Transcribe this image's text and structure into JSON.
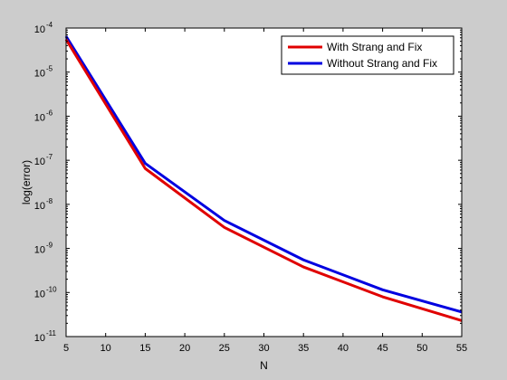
{
  "chart_data": {
    "type": "line",
    "title": "",
    "xlabel": "N",
    "ylabel": "log(error)",
    "xlim": [
      5,
      55
    ],
    "ylim": [
      1e-11,
      0.0001
    ],
    "yscale": "log",
    "grid": false,
    "legend_position": "top-right",
    "x_ticks": [
      5,
      10,
      15,
      20,
      25,
      30,
      35,
      40,
      45,
      50,
      55
    ],
    "y_ticks": [
      {
        "base": "10",
        "exp": "-11",
        "value": 1e-11
      },
      {
        "base": "10",
        "exp": "-10",
        "value": 1e-10
      },
      {
        "base": "10",
        "exp": "-9",
        "value": 1e-09
      },
      {
        "base": "10",
        "exp": "-8",
        "value": 1e-08
      },
      {
        "base": "10",
        "exp": "-7",
        "value": 1e-07
      },
      {
        "base": "10",
        "exp": "-6",
        "value": 1e-06
      },
      {
        "base": "10",
        "exp": "-5",
        "value": 1e-05
      },
      {
        "base": "10",
        "exp": "-4",
        "value": 0.0001
      }
    ],
    "x": [
      5,
      15,
      25,
      35,
      45,
      55
    ],
    "series": [
      {
        "name": "With Strang and Fix",
        "color": "#e00000",
        "values": [
          5.5e-05,
          6.5e-08,
          3e-09,
          3.8e-10,
          8e-11,
          2.3e-11
        ]
      },
      {
        "name": "Without Strang and Fix",
        "color": "#0000e0",
        "values": [
          6.5e-05,
          8.5e-08,
          4.3e-09,
          5.5e-10,
          1.15e-10,
          3.6e-11
        ]
      }
    ]
  }
}
